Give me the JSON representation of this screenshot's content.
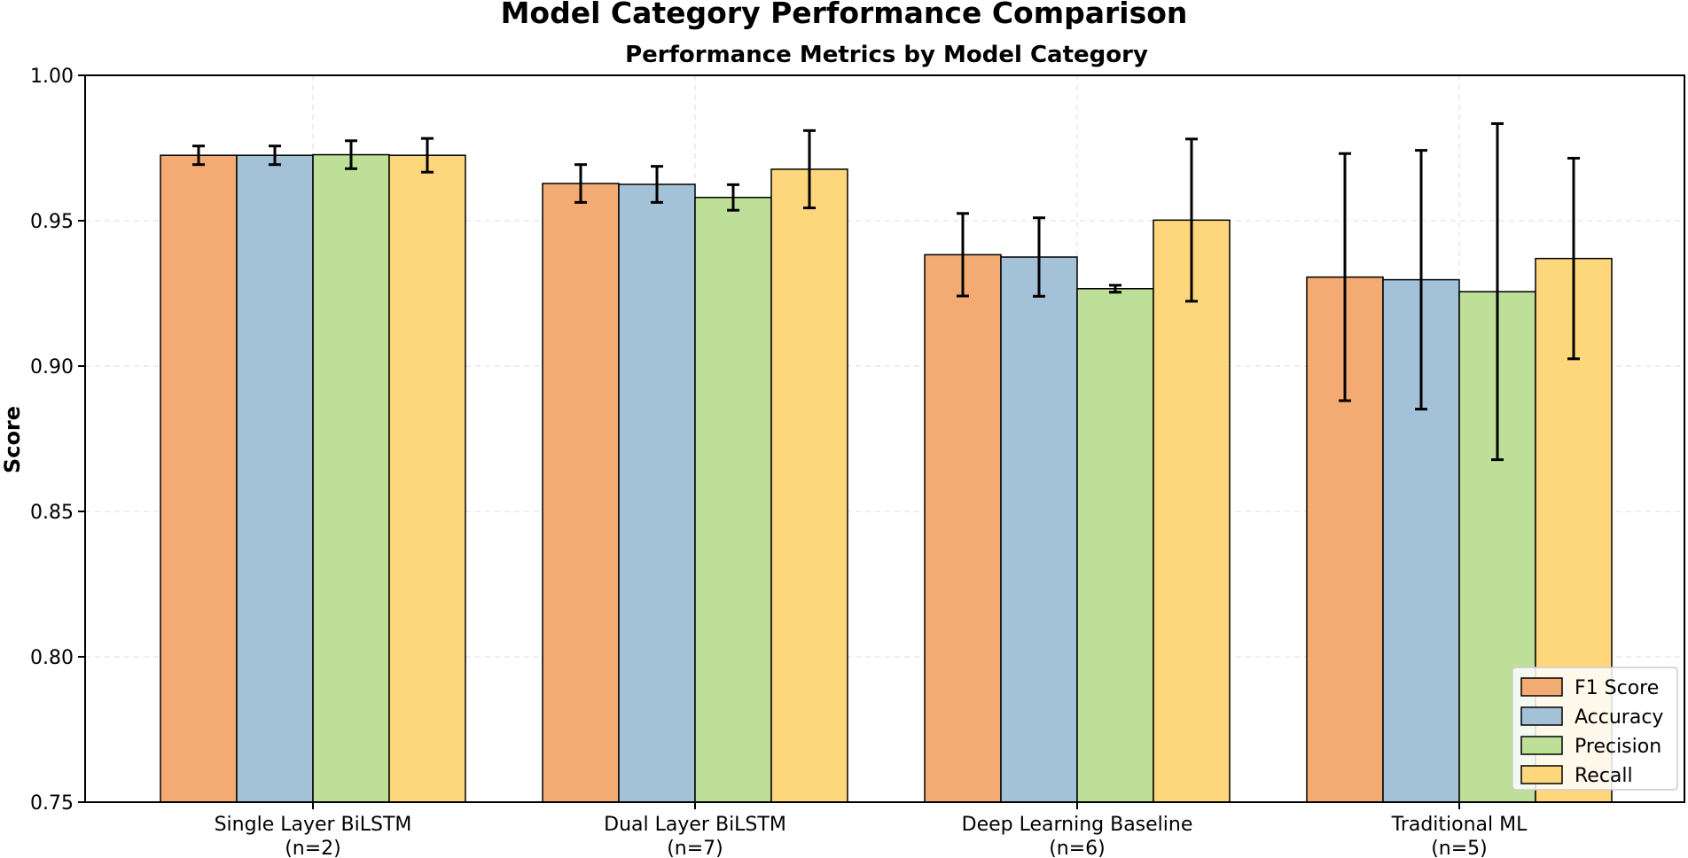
{
  "chart_data": {
    "type": "bar",
    "suptitle": "Model Category Performance Comparison",
    "title": "Performance Metrics by Model Category",
    "xlabel": "",
    "ylabel": "Score",
    "ylim": [
      0.75,
      1.0
    ],
    "yticks": [
      "0.75",
      "0.80",
      "0.85",
      "0.90",
      "0.95",
      "1.00"
    ],
    "grid": true,
    "legend_position": "bottom-right",
    "categories": [
      {
        "name": "Single Layer BiLSTM",
        "n": "(n=2)"
      },
      {
        "name": "Dual Layer BiLSTM",
        "n": "(n=7)"
      },
      {
        "name": "Deep Learning Baseline",
        "n": "(n=6)"
      },
      {
        "name": "Traditional ML",
        "n": "(n=5)"
      }
    ],
    "series": [
      {
        "name": "F1 Score",
        "color": "#f4ab73",
        "values": [
          0.9725,
          0.9628,
          0.9383,
          0.9306
        ],
        "errors": [
          0.0032,
          0.0065,
          0.0142,
          0.0425
        ]
      },
      {
        "name": "Accuracy",
        "color": "#a3c1d7",
        "values": [
          0.9725,
          0.9625,
          0.9375,
          0.9297
        ],
        "errors": [
          0.0032,
          0.0062,
          0.0135,
          0.0445
        ]
      },
      {
        "name": "Precision",
        "color": "#bddf98",
        "values": [
          0.9727,
          0.958,
          0.9266,
          0.9256
        ],
        "errors": [
          0.0048,
          0.0044,
          0.0012,
          0.0578
        ]
      },
      {
        "name": "Recall",
        "color": "#fed67c",
        "values": [
          0.9725,
          0.9677,
          0.9502,
          0.937
        ],
        "errors": [
          0.0058,
          0.0133,
          0.0279,
          0.0345
        ]
      }
    ]
  }
}
